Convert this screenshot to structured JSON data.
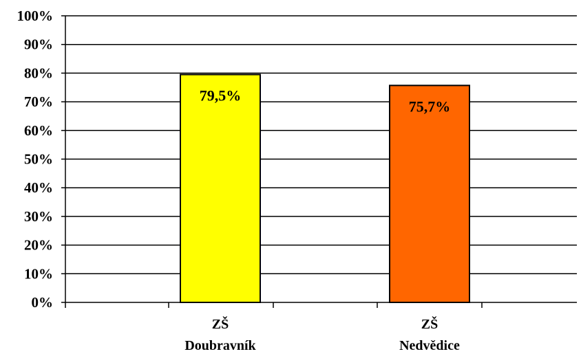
{
  "chart_data": {
    "type": "bar",
    "categories": [
      [
        "ZŠ",
        "Doubravník"
      ],
      [
        "ZŠ",
        "Nedvědice"
      ]
    ],
    "values": [
      79.5,
      75.7
    ],
    "data_labels": [
      "79,5%",
      "75,7%"
    ],
    "colors": [
      "#FFFF00",
      "#FF6600"
    ],
    "ylim": [
      0,
      100
    ],
    "yticks": [
      0,
      10,
      20,
      30,
      40,
      50,
      60,
      70,
      80,
      90,
      100
    ],
    "ytick_labels": [
      "0%",
      "10%",
      "20%",
      "30%",
      "40%",
      "50%",
      "60%",
      "70%",
      "80%",
      "90%",
      "100%"
    ],
    "grid": true,
    "legend": false,
    "title": "",
    "xlabel": "",
    "ylabel": ""
  }
}
